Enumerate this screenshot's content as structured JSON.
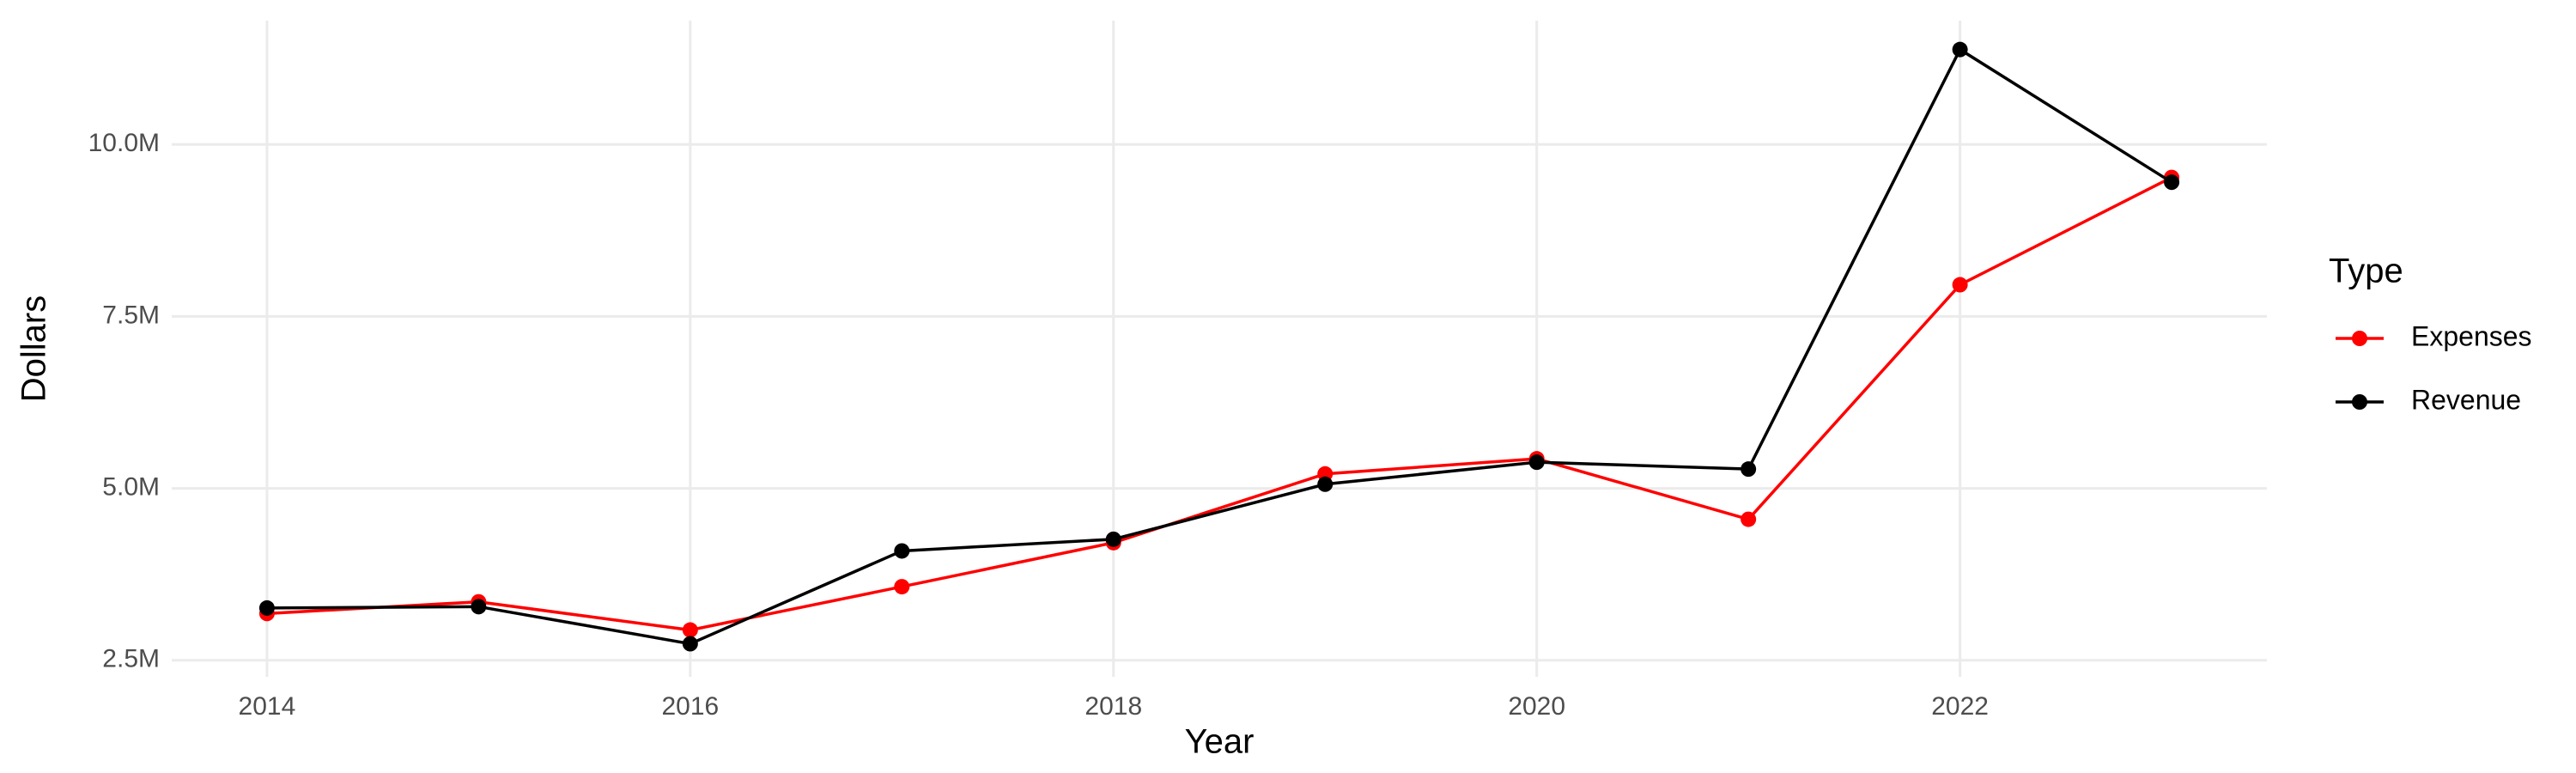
{
  "chart_data": {
    "type": "line",
    "x_label": "Year",
    "y_label": "Dollars",
    "legend_title": "Type",
    "x": [
      2014,
      2015,
      2016,
      2017,
      2018,
      2019,
      2020,
      2021,
      2022,
      2023
    ],
    "series": [
      {
        "name": "Expenses",
        "color": "#ff0000",
        "values": [
          3180000,
          3350000,
          2940000,
          3570000,
          4210000,
          5210000,
          5430000,
          4550000,
          7960000,
          9520000
        ]
      },
      {
        "name": "Revenue",
        "color": "#000000",
        "values": [
          3260000,
          3280000,
          2740000,
          4090000,
          4260000,
          5060000,
          5380000,
          5280000,
          11380000,
          9450000
        ]
      }
    ],
    "xlim": [
      2013.55,
      2023.45
    ],
    "xticks": [
      2014,
      2016,
      2018,
      2020,
      2022
    ],
    "ylim": [
      2260000,
      11800000
    ],
    "yticks": [
      {
        "value": 2500000,
        "label": "2.5M"
      },
      {
        "value": 5000000,
        "label": "5.0M"
      },
      {
        "value": 7500000,
        "label": "7.5M"
      },
      {
        "value": 10000000,
        "label": "10.0M"
      }
    ],
    "grid": true,
    "legend": "right"
  }
}
